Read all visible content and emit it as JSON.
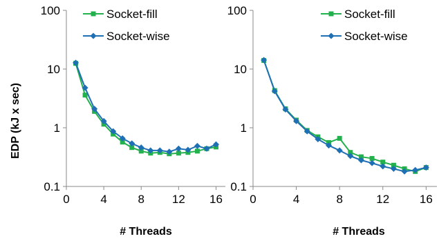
{
  "chart_data": [
    {
      "type": "line",
      "ylabel": "EDP (kJ x sec)",
      "xlabel": "# Threads",
      "yscale": "log",
      "ylim": [
        0.1,
        100
      ],
      "xlim": [
        0,
        17
      ],
      "xticks": [
        0,
        4,
        8,
        12,
        16
      ],
      "xtick_labels": [
        "0",
        "4",
        "8",
        "12",
        "16"
      ],
      "yticks": [
        0.1,
        1,
        10,
        100
      ],
      "ytick_labels": [
        "0.1",
        "1",
        "10",
        "100"
      ],
      "legend_position": "top-right",
      "x": [
        1,
        2,
        3,
        4,
        5,
        6,
        7,
        8,
        9,
        10,
        11,
        12,
        13,
        14,
        15,
        16
      ],
      "series": [
        {
          "name": "Socket-fill",
          "color": "#22b14c",
          "marker": "square",
          "values": [
            12.5,
            3.6,
            1.9,
            1.15,
            0.78,
            0.57,
            0.46,
            0.4,
            0.37,
            0.38,
            0.36,
            0.37,
            0.38,
            0.4,
            0.44,
            0.47
          ]
        },
        {
          "name": "Socket-wise",
          "color": "#1f6fb5",
          "marker": "diamond",
          "values": [
            12.8,
            4.8,
            2.1,
            1.3,
            0.87,
            0.66,
            0.54,
            0.46,
            0.41,
            0.41,
            0.39,
            0.44,
            0.42,
            0.49,
            0.44,
            0.52
          ]
        }
      ]
    },
    {
      "type": "line",
      "ylabel": "",
      "xlabel": "# Threads",
      "yscale": "log",
      "ylim": [
        0.1,
        100
      ],
      "xlim": [
        0,
        17
      ],
      "xticks": [
        0,
        4,
        8,
        12,
        16
      ],
      "xtick_labels": [
        "0",
        "4",
        "8",
        "12",
        "16"
      ],
      "yticks": [
        0.1,
        1,
        10,
        100
      ],
      "ytick_labels": [
        "0.1",
        "1",
        "10",
        "100"
      ],
      "legend_position": "top-right",
      "x": [
        1,
        2,
        3,
        4,
        5,
        6,
        7,
        8,
        9,
        10,
        11,
        12,
        13,
        14,
        15,
        16
      ],
      "series": [
        {
          "name": "Socket-fill",
          "color": "#22b14c",
          "marker": "square",
          "values": [
            14,
            4.3,
            2.1,
            1.35,
            0.9,
            0.7,
            0.56,
            0.66,
            0.38,
            0.32,
            0.3,
            0.26,
            0.23,
            0.2,
            0.18,
            0.21
          ]
        },
        {
          "name": "Socket-wise",
          "color": "#1f6fb5",
          "marker": "diamond",
          "values": [
            14.2,
            4.2,
            2.05,
            1.3,
            0.87,
            0.64,
            0.5,
            0.41,
            0.33,
            0.28,
            0.25,
            0.22,
            0.2,
            0.18,
            0.19,
            0.21
          ]
        }
      ]
    }
  ]
}
